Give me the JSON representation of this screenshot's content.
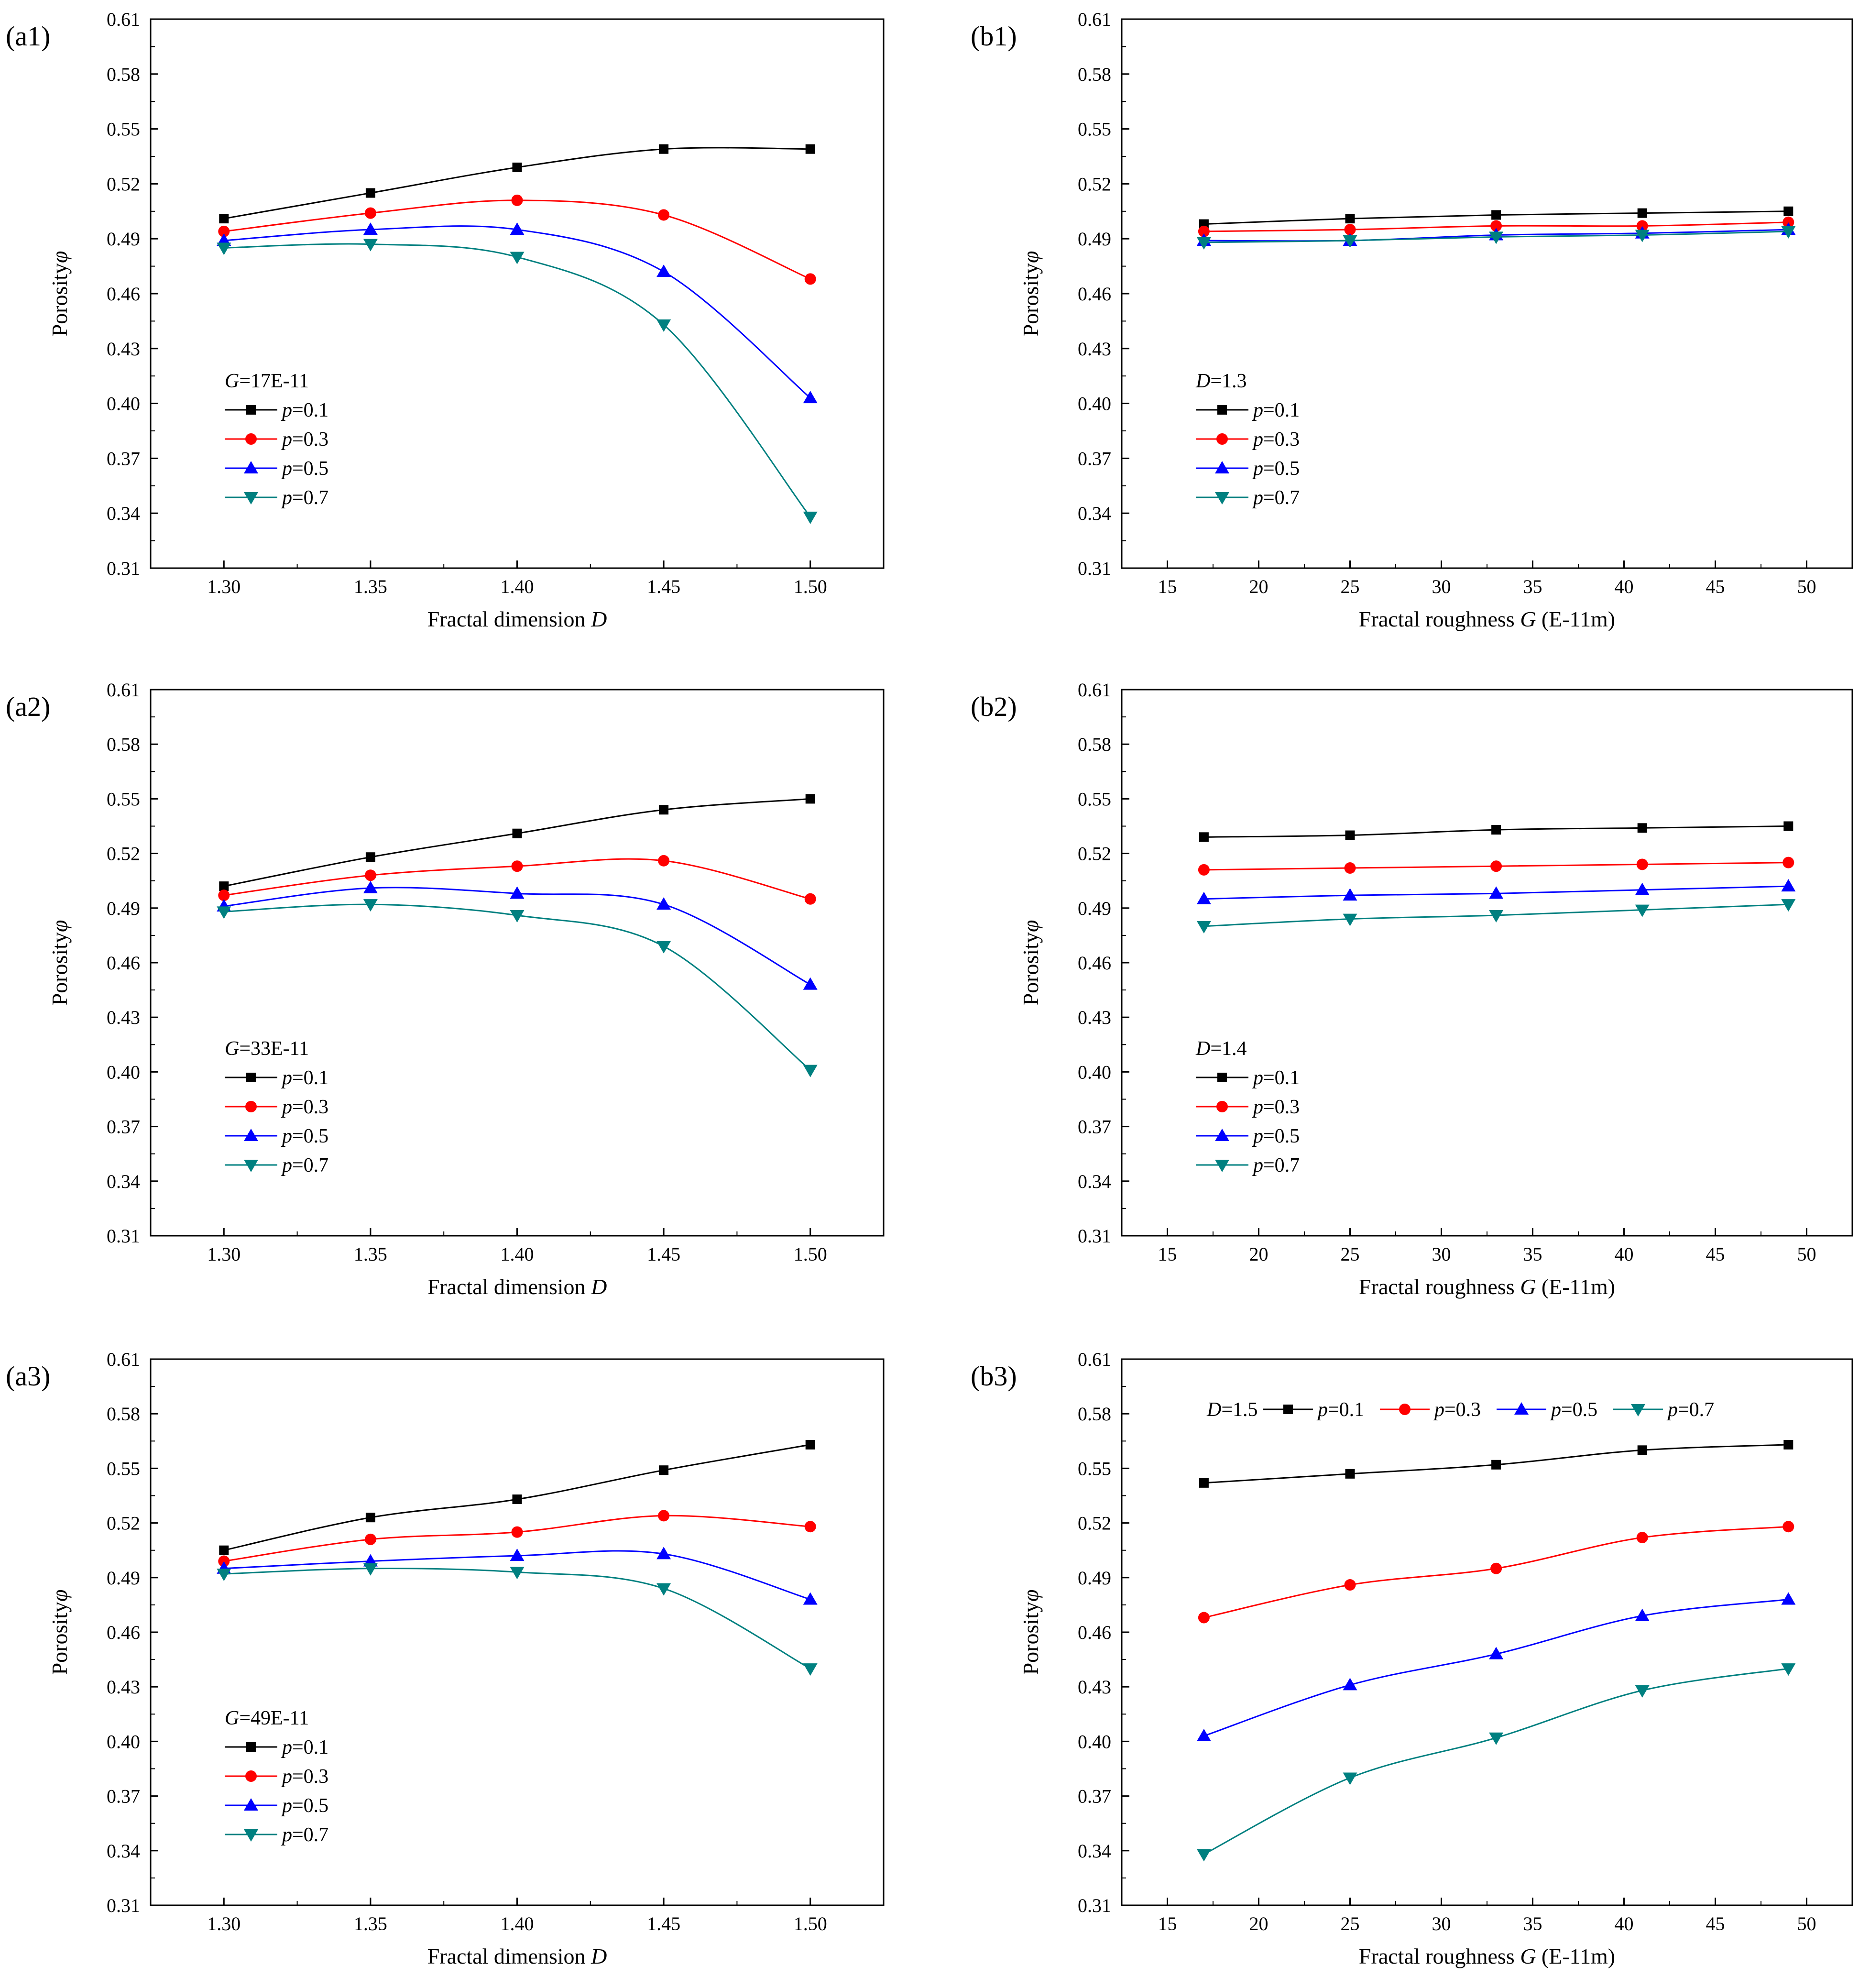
{
  "chart_data": [
    {
      "id": "a1",
      "type": "line",
      "panel_label": "(a1)",
      "xlabel": "Fractal dimension",
      "xlabel_var": "D",
      "ylabel": "Porosity",
      "ylabel_var": "φ",
      "xlim": [
        1.275,
        1.525
      ],
      "ylim": [
        0.31,
        0.61
      ],
      "xticks": [
        1.3,
        1.35,
        1.4,
        1.45,
        1.5
      ],
      "xtick_labels": [
        "1.30",
        "1.35",
        "1.40",
        "1.45",
        "1.50"
      ],
      "yticks": [
        0.31,
        0.34,
        0.37,
        0.4,
        0.43,
        0.46,
        0.49,
        0.52,
        0.55,
        0.58,
        0.61
      ],
      "ytick_labels": [
        "0.31",
        "0.34",
        "0.37",
        "0.40",
        "0.43",
        "0.46",
        "0.49",
        "0.52",
        "0.55",
        "0.58",
        "0.61"
      ],
      "legend": {
        "title_var": "G",
        "title_rest": "=17E-11",
        "layout": "vertical",
        "position": "lower-left"
      },
      "x": [
        1.3,
        1.35,
        1.4,
        1.45,
        1.5
      ],
      "series": [
        {
          "var": "p",
          "name": "=0.1",
          "values": [
            0.501,
            0.515,
            0.529,
            0.539,
            0.539
          ]
        },
        {
          "var": "p",
          "name": "=0.3",
          "values": [
            0.494,
            0.504,
            0.511,
            0.503,
            0.468
          ]
        },
        {
          "var": "p",
          "name": "=0.5",
          "values": [
            0.489,
            0.495,
            0.495,
            0.472,
            0.403
          ]
        },
        {
          "var": "p",
          "name": "=0.7",
          "values": [
            0.485,
            0.487,
            0.48,
            0.443,
            0.338
          ]
        }
      ]
    },
    {
      "id": "b1",
      "type": "line",
      "panel_label": "(b1)",
      "xlabel": "Fractal roughness",
      "xlabel_var": "G",
      "xlabel_unit": "(E-11m)",
      "ylabel": "Porosity",
      "ylabel_var": "φ",
      "xlim": [
        12.5,
        52.5
      ],
      "ylim": [
        0.31,
        0.61
      ],
      "xticks": [
        15,
        20,
        25,
        30,
        35,
        40,
        45,
        50
      ],
      "xtick_labels": [
        "15",
        "20",
        "25",
        "30",
        "35",
        "40",
        "45",
        "50"
      ],
      "yticks": [
        0.31,
        0.34,
        0.37,
        0.4,
        0.43,
        0.46,
        0.49,
        0.52,
        0.55,
        0.58,
        0.61
      ],
      "ytick_labels": [
        "0.31",
        "0.34",
        "0.37",
        "0.40",
        "0.43",
        "0.46",
        "0.49",
        "0.52",
        "0.55",
        "0.58",
        "0.61"
      ],
      "legend": {
        "title_var": "D",
        "title_rest": "=1.3",
        "layout": "vertical",
        "position": "lower-left"
      },
      "x": [
        17,
        25,
        33,
        41,
        49
      ],
      "series": [
        {
          "var": "p",
          "name": "=0.1",
          "values": [
            0.498,
            0.501,
            0.503,
            0.504,
            0.505
          ]
        },
        {
          "var": "p",
          "name": "=0.3",
          "values": [
            0.494,
            0.495,
            0.497,
            0.497,
            0.499
          ]
        },
        {
          "var": "p",
          "name": "=0.5",
          "values": [
            0.489,
            0.489,
            0.492,
            0.493,
            0.495
          ]
        },
        {
          "var": "p",
          "name": "=0.7",
          "values": [
            0.488,
            0.489,
            0.491,
            0.492,
            0.494
          ]
        }
      ]
    },
    {
      "id": "a2",
      "type": "line",
      "panel_label": "(a2)",
      "xlabel": "Fractal dimension",
      "xlabel_var": "D",
      "ylabel": "Porosity",
      "ylabel_var": "φ",
      "xlim": [
        1.275,
        1.525
      ],
      "ylim": [
        0.31,
        0.61
      ],
      "xticks": [
        1.3,
        1.35,
        1.4,
        1.45,
        1.5
      ],
      "xtick_labels": [
        "1.30",
        "1.35",
        "1.40",
        "1.45",
        "1.50"
      ],
      "yticks": [
        0.31,
        0.34,
        0.37,
        0.4,
        0.43,
        0.46,
        0.49,
        0.52,
        0.55,
        0.58,
        0.61
      ],
      "ytick_labels": [
        "0.31",
        "0.34",
        "0.37",
        "0.40",
        "0.43",
        "0.46",
        "0.49",
        "0.52",
        "0.55",
        "0.58",
        "0.61"
      ],
      "legend": {
        "title_var": "G",
        "title_rest": "=33E-11",
        "layout": "vertical",
        "position": "lower-left"
      },
      "x": [
        1.3,
        1.35,
        1.4,
        1.45,
        1.5
      ],
      "series": [
        {
          "var": "p",
          "name": "=0.1",
          "values": [
            0.502,
            0.518,
            0.531,
            0.544,
            0.55
          ]
        },
        {
          "var": "p",
          "name": "=0.3",
          "values": [
            0.497,
            0.508,
            0.513,
            0.516,
            0.495
          ]
        },
        {
          "var": "p",
          "name": "=0.5",
          "values": [
            0.491,
            0.501,
            0.498,
            0.492,
            0.448
          ]
        },
        {
          "var": "p",
          "name": "=0.7",
          "values": [
            0.488,
            0.492,
            0.486,
            0.469,
            0.401
          ]
        }
      ]
    },
    {
      "id": "b2",
      "type": "line",
      "panel_label": "(b2)",
      "xlabel": "Fractal roughness",
      "xlabel_var": "G",
      "xlabel_unit": "(E-11m)",
      "ylabel": "Porosity",
      "ylabel_var": "φ",
      "xlim": [
        12.5,
        52.5
      ],
      "ylim": [
        0.31,
        0.61
      ],
      "xticks": [
        15,
        20,
        25,
        30,
        35,
        40,
        45,
        50
      ],
      "xtick_labels": [
        "15",
        "20",
        "25",
        "30",
        "35",
        "40",
        "45",
        "50"
      ],
      "yticks": [
        0.31,
        0.34,
        0.37,
        0.4,
        0.43,
        0.46,
        0.49,
        0.52,
        0.55,
        0.58,
        0.61
      ],
      "ytick_labels": [
        "0.31",
        "0.34",
        "0.37",
        "0.40",
        "0.43",
        "0.46",
        "0.49",
        "0.52",
        "0.55",
        "0.58",
        "0.61"
      ],
      "legend": {
        "title_var": "D",
        "title_rest": "=1.4",
        "layout": "vertical",
        "position": "lower-left"
      },
      "x": [
        17,
        25,
        33,
        41,
        49
      ],
      "series": [
        {
          "var": "p",
          "name": "=0.1",
          "values": [
            0.529,
            0.53,
            0.533,
            0.534,
            0.535
          ]
        },
        {
          "var": "p",
          "name": "=0.3",
          "values": [
            0.511,
            0.512,
            0.513,
            0.514,
            0.515
          ]
        },
        {
          "var": "p",
          "name": "=0.5",
          "values": [
            0.495,
            0.497,
            0.498,
            0.5,
            0.502
          ]
        },
        {
          "var": "p",
          "name": "=0.7",
          "values": [
            0.48,
            0.484,
            0.486,
            0.489,
            0.492
          ]
        }
      ]
    },
    {
      "id": "a3",
      "type": "line",
      "panel_label": "(a3)",
      "xlabel": "Fractal dimension",
      "xlabel_var": "D",
      "ylabel": "Porosity",
      "ylabel_var": "φ",
      "xlim": [
        1.275,
        1.525
      ],
      "ylim": [
        0.31,
        0.61
      ],
      "xticks": [
        1.3,
        1.35,
        1.4,
        1.45,
        1.5
      ],
      "xtick_labels": [
        "1.30",
        "1.35",
        "1.40",
        "1.45",
        "1.50"
      ],
      "yticks": [
        0.31,
        0.34,
        0.37,
        0.4,
        0.43,
        0.46,
        0.49,
        0.52,
        0.55,
        0.58,
        0.61
      ],
      "ytick_labels": [
        "0.31",
        "0.34",
        "0.37",
        "0.40",
        "0.43",
        "0.46",
        "0.49",
        "0.52",
        "0.55",
        "0.58",
        "0.61"
      ],
      "legend": {
        "title_var": "G",
        "title_rest": "=49E-11",
        "layout": "vertical",
        "position": "lower-left"
      },
      "x": [
        1.3,
        1.35,
        1.4,
        1.45,
        1.5
      ],
      "series": [
        {
          "var": "p",
          "name": "=0.1",
          "values": [
            0.505,
            0.523,
            0.533,
            0.549,
            0.563
          ]
        },
        {
          "var": "p",
          "name": "=0.3",
          "values": [
            0.499,
            0.511,
            0.515,
            0.524,
            0.518
          ]
        },
        {
          "var": "p",
          "name": "=0.5",
          "values": [
            0.495,
            0.499,
            0.502,
            0.503,
            0.478
          ]
        },
        {
          "var": "p",
          "name": "=0.7",
          "values": [
            0.492,
            0.495,
            0.493,
            0.484,
            0.44
          ]
        }
      ]
    },
    {
      "id": "b3",
      "type": "line",
      "panel_label": "(b3)",
      "xlabel": "Fractal roughness",
      "xlabel_var": "G",
      "xlabel_unit": "(E-11m)",
      "ylabel": "Porosity",
      "ylabel_var": "φ",
      "xlim": [
        12.5,
        52.5
      ],
      "ylim": [
        0.31,
        0.61
      ],
      "xticks": [
        15,
        20,
        25,
        30,
        35,
        40,
        45,
        50
      ],
      "xtick_labels": [
        "15",
        "20",
        "25",
        "30",
        "35",
        "40",
        "45",
        "50"
      ],
      "yticks": [
        0.31,
        0.34,
        0.37,
        0.4,
        0.43,
        0.46,
        0.49,
        0.52,
        0.55,
        0.58,
        0.61
      ],
      "ytick_labels": [
        "0.31",
        "0.34",
        "0.37",
        "0.40",
        "0.43",
        "0.46",
        "0.49",
        "0.52",
        "0.55",
        "0.58",
        "0.61"
      ],
      "legend": {
        "title_var": "D",
        "title_rest": "=1.5",
        "layout": "horizontal",
        "position": "top"
      },
      "x": [
        17,
        25,
        33,
        41,
        49
      ],
      "series": [
        {
          "var": "p",
          "name": "=0.1",
          "values": [
            0.542,
            0.547,
            0.552,
            0.56,
            0.563
          ]
        },
        {
          "var": "p",
          "name": "=0.3",
          "values": [
            0.468,
            0.486,
            0.495,
            0.512,
            0.518
          ]
        },
        {
          "var": "p",
          "name": "=0.5",
          "values": [
            0.403,
            0.431,
            0.448,
            0.469,
            0.478
          ]
        },
        {
          "var": "p",
          "name": "=0.7",
          "values": [
            0.338,
            0.38,
            0.402,
            0.428,
            0.44
          ]
        }
      ]
    }
  ],
  "style": {
    "series_colors": [
      "#000000",
      "#ff0000",
      "#0000ff",
      "#008080"
    ],
    "series_markers": [
      "square",
      "circle",
      "triangle-up",
      "triangle-down"
    ]
  }
}
